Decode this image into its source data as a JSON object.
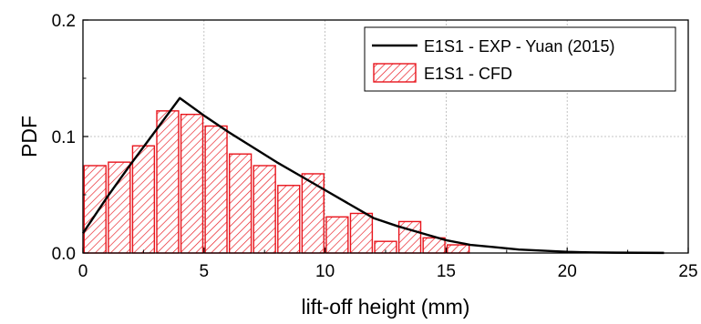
{
  "chart_data": {
    "type": "bar",
    "xlabel": "lift-off height (mm)",
    "ylabel": "PDF",
    "xlim": [
      0,
      25
    ],
    "ylim": [
      0,
      0.2
    ],
    "xticks": [
      "0",
      "5",
      "10",
      "15",
      "20",
      "25"
    ],
    "yticks": [
      "0.0",
      "0.1",
      "0.2"
    ],
    "grid": true,
    "legend_position": "top-right",
    "bar_width": 0.9,
    "series": [
      {
        "name": "E1S1 - EXP - Yuan (2015)",
        "kind": "line",
        "color": "#000000",
        "x": [
          0,
          1,
          2,
          3,
          4,
          5,
          6,
          7,
          8,
          9,
          10,
          11,
          12,
          13,
          14,
          15,
          16,
          17,
          18,
          19,
          20,
          21,
          22,
          23,
          24
        ],
        "values": [
          0.017,
          0.048,
          0.077,
          0.105,
          0.133,
          0.118,
          0.104,
          0.091,
          0.078,
          0.066,
          0.054,
          0.042,
          0.03,
          0.023,
          0.017,
          0.011,
          0.007,
          0.005,
          0.003,
          0.002,
          0.001,
          0.0005,
          0.0003,
          0.0002,
          0.0001
        ]
      },
      {
        "name": "E1S1 - CFD",
        "kind": "bar",
        "color": "#e8141c",
        "x": [
          0.5,
          1.5,
          2.5,
          3.5,
          4.5,
          5.5,
          6.5,
          7.5,
          8.5,
          9.5,
          10.5,
          11.5,
          12.5,
          13.5,
          14.5,
          15.5
        ],
        "values": [
          0.075,
          0.078,
          0.092,
          0.122,
          0.119,
          0.109,
          0.085,
          0.075,
          0.058,
          0.068,
          0.031,
          0.034,
          0.01,
          0.027,
          0.013,
          0.007
        ]
      }
    ]
  }
}
